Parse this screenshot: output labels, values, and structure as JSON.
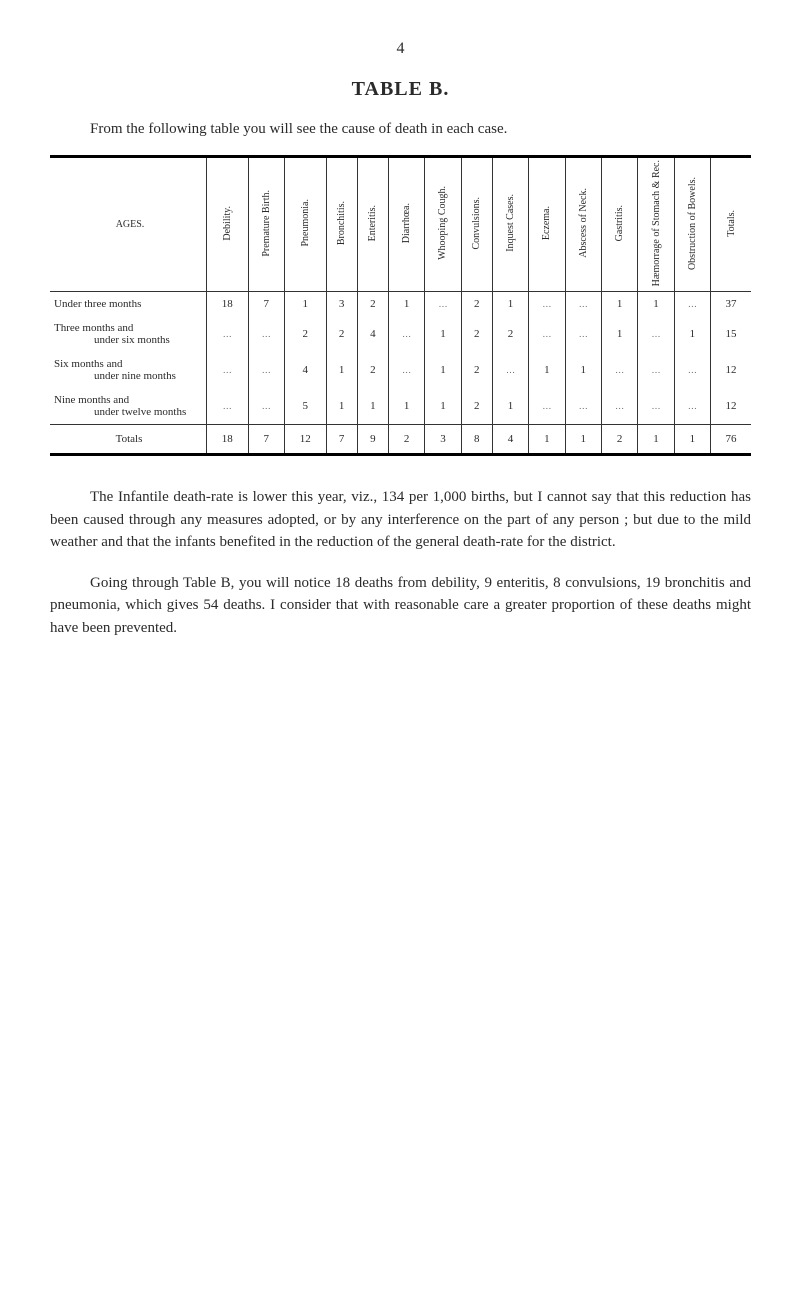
{
  "page_number": "4",
  "title": "TABLE B.",
  "intro": "From the following table you will see the cause of death in each case.",
  "table": {
    "ages_header": "AGES.",
    "columns": [
      "Debility.",
      "Premature Birth.",
      "Pneumonia.",
      "Bronchitis.",
      "Enteritis.",
      "Diarrhœa.",
      "Whooping Cough.",
      "Convulsions.",
      "Inquest Cases.",
      "Eczema.",
      "Abscess of Neck.",
      "Gastritis.",
      "Hæmorrage of Stomach & Rec.",
      "Obstruction of Bowels.",
      "Totals."
    ],
    "rows": [
      {
        "label": "Under three months",
        "label2": "",
        "cells": [
          "18",
          "7",
          "1",
          "3",
          "2",
          "1",
          "…",
          "2",
          "1",
          "…",
          "…",
          "1",
          "1",
          "…",
          "37"
        ]
      },
      {
        "label": "Three months and",
        "label2": "under six months",
        "cells": [
          "…",
          "…",
          "2",
          "2",
          "4",
          "…",
          "1",
          "2",
          "2",
          "…",
          "…",
          "1",
          "…",
          "1",
          "15"
        ]
      },
      {
        "label": "Six months and",
        "label2": "under nine months",
        "cells": [
          "…",
          "…",
          "4",
          "1",
          "2",
          "…",
          "1",
          "2",
          "…",
          "1",
          "1",
          "…",
          "…",
          "…",
          "12"
        ]
      },
      {
        "label": "Nine months and",
        "label2": "under twelve months",
        "cells": [
          "…",
          "…",
          "5",
          "1",
          "1",
          "1",
          "1",
          "2",
          "1",
          "…",
          "…",
          "…",
          "…",
          "…",
          "12"
        ]
      }
    ],
    "totals": {
      "label": "Totals",
      "cells": [
        "18",
        "7",
        "12",
        "7",
        "9",
        "2",
        "3",
        "8",
        "4",
        "1",
        "1",
        "2",
        "1",
        "1",
        "76"
      ]
    }
  },
  "para1": "The Infantile death-rate is lower this year, viz., 134 per 1,000 births, but I cannot say that this reduction has been caused through any measures adopted, or by any interference on the part of any person ; but due to the mild weather and that the infants benefited in the reduction of the general death-rate for the district.",
  "para2": "Going through Table B, you will notice 18 deaths from debility, 9 enteritis, 8 convulsions, 19 bronchitis and pneumonia, which gives 54 deaths. I consider that with reasonable care a greater proportion of these deaths might have been prevented."
}
